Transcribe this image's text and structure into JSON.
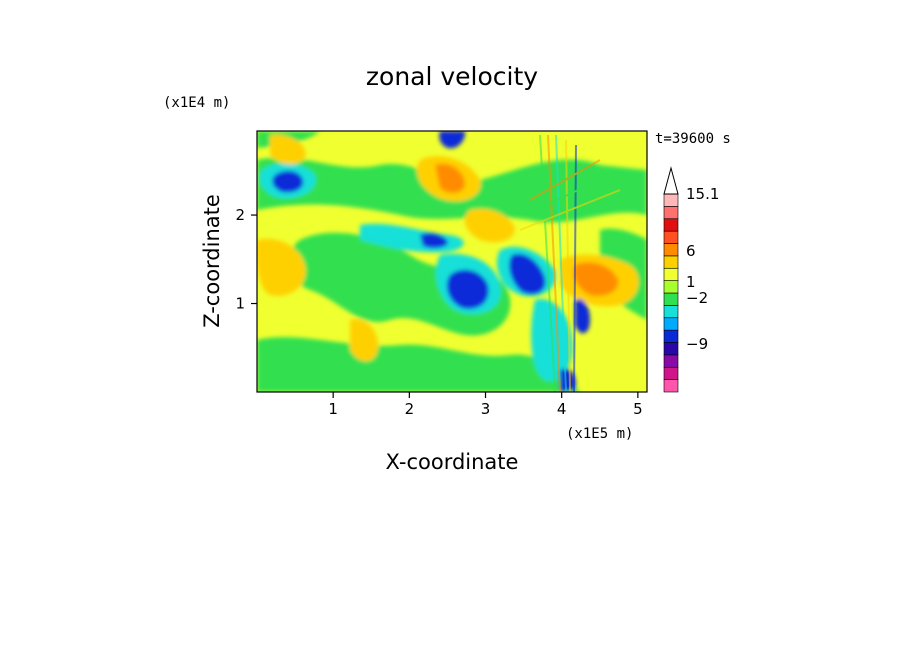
{
  "chart_data": {
    "type": "heatmap",
    "title": "zonal velocity",
    "time_label": "t=39600 s",
    "xlabel": "X-coordinate",
    "ylabel": "Z-coordinate",
    "x_unit": "(x1E5 m)",
    "y_unit": "(x1E4 m)",
    "xlim": [
      0,
      5.12
    ],
    "ylim": [
      0,
      2.95
    ],
    "x_ticks": [
      1,
      2,
      3,
      4,
      5
    ],
    "y_ticks": [
      1,
      2
    ],
    "colorbar": {
      "levels_labeled": [
        "15.1",
        "6",
        "1",
        "-2",
        "-9"
      ],
      "colors": [
        "#ff55aa",
        "#d0148a",
        "#8a0aa8",
        "#2a08a8",
        "#0a2ad8",
        "#00aaff",
        "#18e0d8",
        "#30e050",
        "#a8ff30",
        "#f0ff30",
        "#ffd000",
        "#ff8c00",
        "#ff5020",
        "#e01010",
        "#ff7070",
        "#ffb8b8"
      ],
      "extend": "max"
    },
    "field_description_levels": {
      "background": "#f0ff30",
      "dominant_ranges": "-2 to 6"
    }
  }
}
